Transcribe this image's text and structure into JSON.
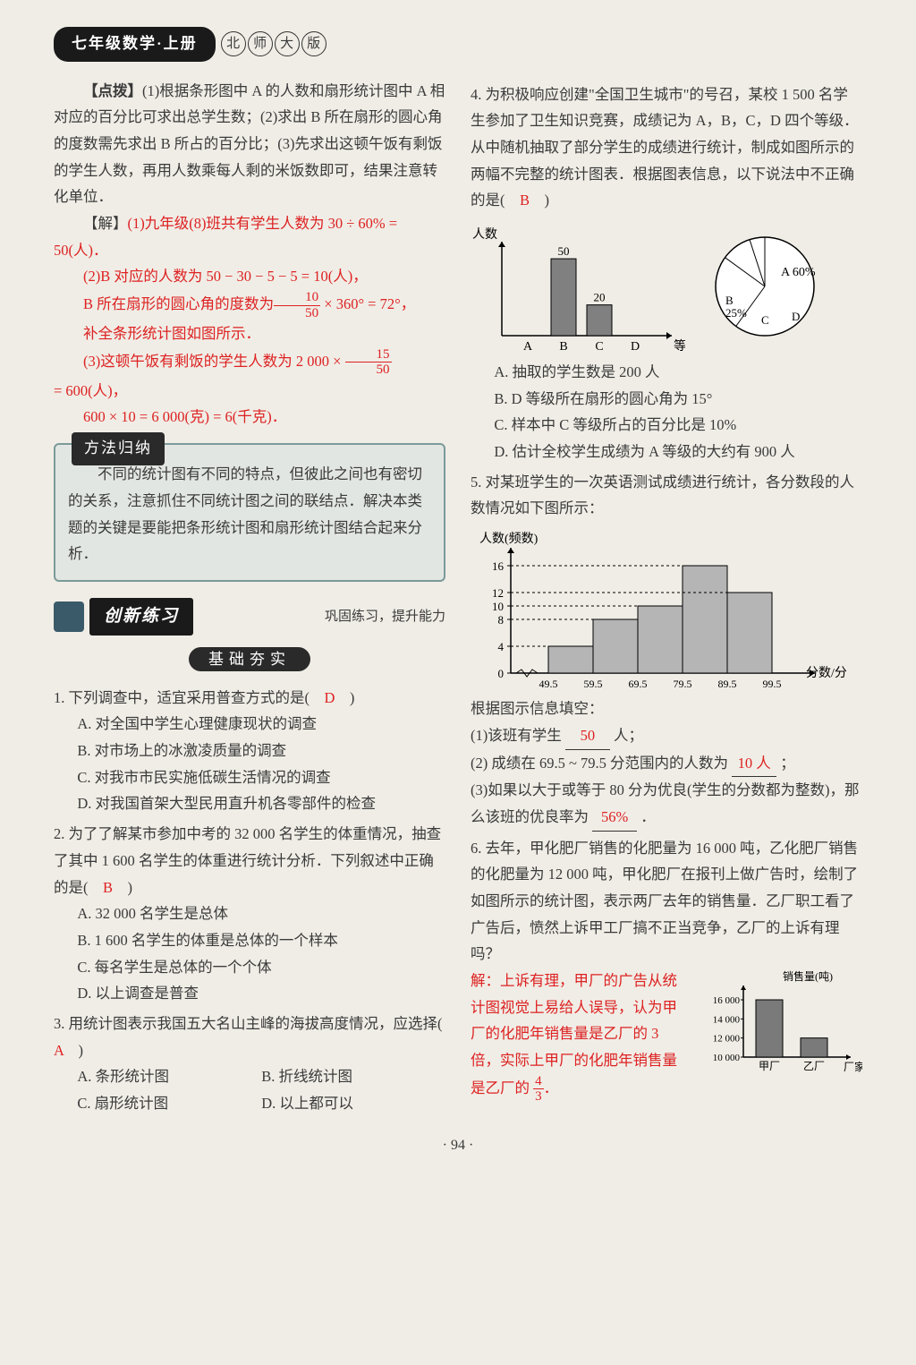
{
  "header": {
    "pill": "七年级数学·上册",
    "circles": [
      "北",
      "师",
      "大",
      "版"
    ]
  },
  "left": {
    "tip_label": "【点拨】",
    "tip_body": "(1)根据条形图中 A 的人数和扇形统计图中 A 相对应的百分比可求出总学生数；(2)求出 B 所在扇形的圆心角的度数需先求出 B 所占的百分比；(3)先求出这顿午饭有剩饭的学生人数，再用人数乘每人剩的米饭数即可，结果注意转化单位．",
    "sol_label": "【解】",
    "sol_1": "(1)九年级(8)班共有学生人数为 30 ÷ 60% = 50(人)．",
    "sol_2a": "(2)B 对应的人数为 50 − 30 − 5 − 5 = 10(人)，",
    "sol_2b_pre": "B 所在扇形的圆心角的度数为",
    "sol_2b_frac_n": "10",
    "sol_2b_frac_d": "50",
    "sol_2b_post": " × 360° = 72°，",
    "sol_2c": "补全条形统计图如图所示．",
    "sol_3a_pre": "(3)这顿午饭有剩饭的学生人数为 2 000 × ",
    "sol_3a_frac_n": "15",
    "sol_3a_frac_d": "50",
    "sol_3b": "= 600(人)，",
    "sol_3c": "600 × 10 = 6 000(克) = 6(千克)．",
    "method_title": "方法归纳",
    "method_body": "不同的统计图有不同的特点，但彼此之间也有密切的关系，注意抓住不同统计图之间的联结点．解决本类题的关键是要能把条形统计图和扇形统计图结合起来分析．",
    "practice_title": "创新练习",
    "practice_sub": "巩固练习，提升能力",
    "basic_title": "基础夯实",
    "q1": "1. 下列调查中，适宜采用普查方式的是(　",
    "q1_ans": "D",
    "q1_close": "　)",
    "q1a": "A. 对全国中学生心理健康现状的调查",
    "q1b": "B. 对市场上的冰激凌质量的调查",
    "q1c": "C. 对我市市民实施低碳生活情况的调查",
    "q1d": "D. 对我国首架大型民用直升机各零部件的检查",
    "q2": "2. 为了了解某市参加中考的 32 000 名学生的体重情况，抽查了其中 1 600 名学生的体重进行统计分析．下列叙述中正确的是(　",
    "q2_ans": "B",
    "q2_close": "　)",
    "q2a": "A. 32 000 名学生是总体",
    "q2b": "B. 1 600 名学生的体重是总体的一个样本",
    "q2c": "C. 每名学生是总体的一个个体",
    "q2d": "D. 以上调查是普查",
    "q3": "3. 用统计图表示我国五大名山主峰的海拔高度情况，应选择(　",
    "q3_ans": "A",
    "q3_close": "　)",
    "q3a": "A. 条形统计图",
    "q3b": "B. 折线统计图",
    "q3c": "C. 扇形统计图",
    "q3d": "D. 以上都可以"
  },
  "right": {
    "q4": "4. 为积极响应创建\"全国卫生城市\"的号召，某校 1 500 名学生参加了卫生知识竞赛，成绩记为 A，B，C，D 四个等级．从中随机抽取了部分学生的成绩进行统计，制成如图所示的两幅不完整的统计图表．根据图表信息，以下说法中不正确的是(　",
    "q4_ans": "B",
    "q4_close": "　)",
    "chart4": {
      "ylabel": "人数",
      "xlabel": "等级",
      "categories": [
        "A",
        "B",
        "C",
        "D"
      ],
      "values": [
        0,
        50,
        20,
        0
      ],
      "value_labels": [
        "",
        "50",
        "20",
        ""
      ],
      "bar_color": "#808080",
      "pie": {
        "slices": [
          {
            "label": "A 60%",
            "pct": 60
          },
          {
            "label": "B 25%",
            "pct": 25
          },
          {
            "label": "C",
            "pct": 10
          },
          {
            "label": "D",
            "pct": 5
          }
        ]
      }
    },
    "q4a": "A. 抽取的学生数是 200 人",
    "q4b": "B. D 等级所在扇形的圆心角为 15°",
    "q4c": "C. 样本中 C 等级所占的百分比是 10%",
    "q4d": "D. 估计全校学生成绩为 A 等级的大约有 900 人",
    "q5": "5. 对某班学生的一次英语测试成绩进行统计，各分数段的人数情况如下图所示：",
    "chart5": {
      "ylabel": "人数(频数)",
      "xlabel": "分数/分",
      "xticks": [
        "49.5",
        "59.5",
        "69.5",
        "79.5",
        "89.5",
        "99.5"
      ],
      "yticks": [
        0,
        4,
        8,
        10,
        12,
        16
      ],
      "values": [
        4,
        8,
        10,
        16,
        12
      ],
      "bar_color": "#b5b5b5"
    },
    "q5_prompt": "根据图示信息填空：",
    "q5_1a": "(1)该班有学生",
    "q5_1ans": "50",
    "q5_1b": "人；",
    "q5_2a": "(2) 成绩在 69.5 ~ 79.5 分范围内的人数为",
    "q5_2ans": "10 人",
    "q5_2b": "；",
    "q5_3a": "(3)如果以大于或等于 80 分为优良(学生的分数都为整数)，那么该班的优良率为",
    "q5_3ans": "56%",
    "q5_3b": "．",
    "q6": "6. 去年，甲化肥厂销售的化肥量为 16 000 吨，乙化肥厂销售的化肥量为 12 000 吨，甲化肥厂在报刊上做广告时，绘制了如图所示的统计图，表示两厂去年的销售量．乙厂职工看了广告后，愤然上诉甲工厂搞不正当竞争，乙厂的上诉有理吗？",
    "chart6": {
      "ylabel": "销售量(吨)",
      "xlabel": "厂家",
      "categories": [
        "甲厂",
        "乙厂"
      ],
      "yticks": [
        "10 000",
        "12 000",
        "14 000",
        "16 000"
      ],
      "values": [
        16000,
        12000
      ],
      "bar_color": "#7a7a7a"
    },
    "q6_sol_a": "解：上诉有理，甲厂的广告从统计图视觉上易给人误导，认为甲厂的化肥年销售量是乙厂的 3 倍，实际上甲厂的化肥年销售量是乙厂的",
    "q6_frac_n": "4",
    "q6_frac_d": "3",
    "q6_sol_b": "．"
  },
  "pagenum": "· 94 ·"
}
